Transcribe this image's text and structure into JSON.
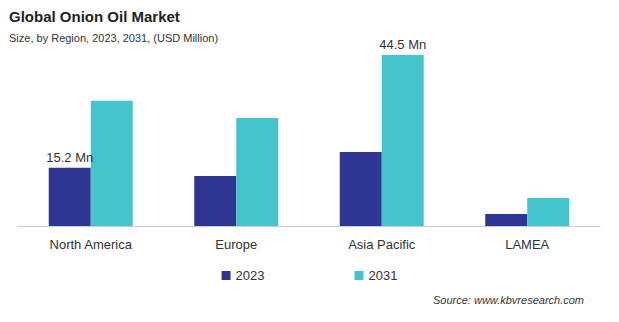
{
  "chart_data": {
    "type": "bar",
    "title": "Global Onion Oil Market",
    "subtitle": "Size, by Region, 2023, 2031, (USD Million)",
    "source": "Source: www.kbvresearch.com",
    "categories": [
      "North America",
      "Europe",
      "Asia Pacific",
      "LAMEA"
    ],
    "series": [
      {
        "name": "2023",
        "color": "#2e3592",
        "values": [
          15.2,
          13.0,
          19.3,
          3.1
        ],
        "value_labels": [
          "15.2 Mn",
          null,
          null,
          null
        ]
      },
      {
        "name": "2031",
        "color": "#45c4cc",
        "values": [
          32.6,
          28.1,
          44.5,
          7.3
        ],
        "value_labels": [
          null,
          null,
          "44.5 Mn",
          null
        ]
      }
    ],
    "ylim": [
      0,
      50
    ],
    "grid": false,
    "legend": "bottom",
    "tick_labels": "x",
    "data_labels": true
  }
}
